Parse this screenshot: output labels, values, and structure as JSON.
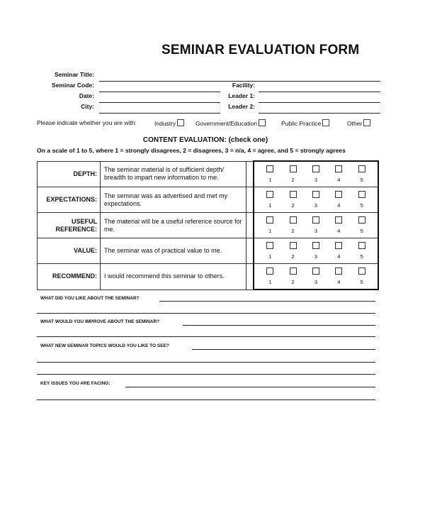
{
  "title": "SEMINAR EVALUATION FORM",
  "fields": {
    "seminar_title": "Seminar Title:",
    "seminar_code": "Seminar Code:",
    "date": "Date:",
    "city": "City:",
    "facility": "Facility:",
    "leader1": "Leader 1:",
    "leader2": "Leader 2:"
  },
  "affiliation": {
    "prompt": "Please indicate whether you are with:",
    "options": [
      "Industry",
      "Government/Education",
      "Public Practice",
      "Other"
    ]
  },
  "content_heading": "CONTENT EVALUATION: (check one)",
  "scale_note": "On a scale of 1 to 5, where 1 = strongly disagrees, 2 = disagrees, 3 = n/a, 4 = agree, and 5 = strongly agrees",
  "ratings": [
    "1",
    "2",
    "3",
    "4",
    "5"
  ],
  "rows": [
    {
      "label": "DEPTH:",
      "statement": "The seminar material is of sufficient depth/ breadth to impart new information to me."
    },
    {
      "label": "EXPECTATIONS:",
      "statement": "The seminar was as advertised and met my expectations."
    },
    {
      "label": "USEFUL REFERENCE:",
      "statement": "The material will be a useful reference source for me."
    },
    {
      "label": "VALUE:",
      "statement": "The seminar was of practical value to me."
    },
    {
      "label": "RECOMMEND:",
      "statement": "I would recommend this seminar to others."
    }
  ],
  "questions": [
    "WHAT DID YOU LIKE ABOUT THE SEMINAR?",
    "WHAT WOULD YOU IMPROVE ABOUT THE SEMINAR?",
    "WHAT NEW SEMINAR TOPICS WOULD YOU LIKE TO SEE?",
    "KEY ISSUES YOU ARE FACING:"
  ]
}
